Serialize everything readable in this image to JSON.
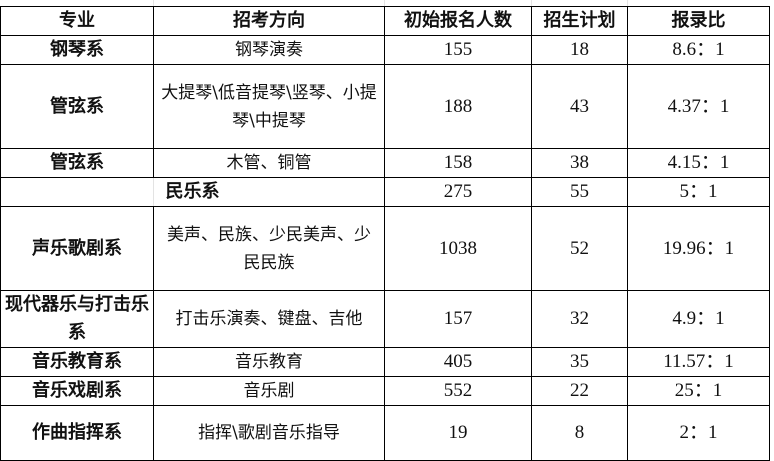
{
  "header": {
    "major": "专业",
    "direction": "招考方向",
    "applicants": "初始报名人数",
    "quota": "招生计划",
    "ratio": "报录比"
  },
  "rows": [
    {
      "major": "钢琴系",
      "direction": "钢琴演奏",
      "applicants": "155",
      "quota": "18",
      "ratio": "8.6：1"
    },
    {
      "major": "管弦系",
      "direction": "大提琴\\低音提琴\\竖琴、小提琴\\中提琴",
      "applicants": "188",
      "quota": "43",
      "ratio": "4.37：1"
    },
    {
      "major": "管弦系",
      "direction": "木管、铜管",
      "applicants": "158",
      "quota": "38",
      "ratio": "4.15：1"
    },
    {
      "major": "民乐系",
      "direction": "",
      "applicants": "275",
      "quota": "55",
      "ratio": "5：1"
    },
    {
      "major": "声乐歌剧系",
      "direction": "美声、民族、少民美声、少民民族",
      "applicants": "1038",
      "quota": "52",
      "ratio": "19.96：1"
    },
    {
      "major": "现代器乐与打击乐系",
      "direction": "打击乐演奏、键盘、吉他",
      "applicants": "157",
      "quota": "32",
      "ratio": "4.9：1"
    },
    {
      "major": "音乐教育系",
      "direction": "音乐教育",
      "applicants": "405",
      "quota": "35",
      "ratio": "11.57：1"
    },
    {
      "major": "音乐戏剧系",
      "direction": "音乐剧",
      "applicants": "552",
      "quota": "22",
      "ratio": "25：1"
    },
    {
      "major": "作曲指挥系",
      "direction": "指挥\\歌剧音乐指导",
      "applicants": "19",
      "quota": "8",
      "ratio": "2：1"
    }
  ]
}
